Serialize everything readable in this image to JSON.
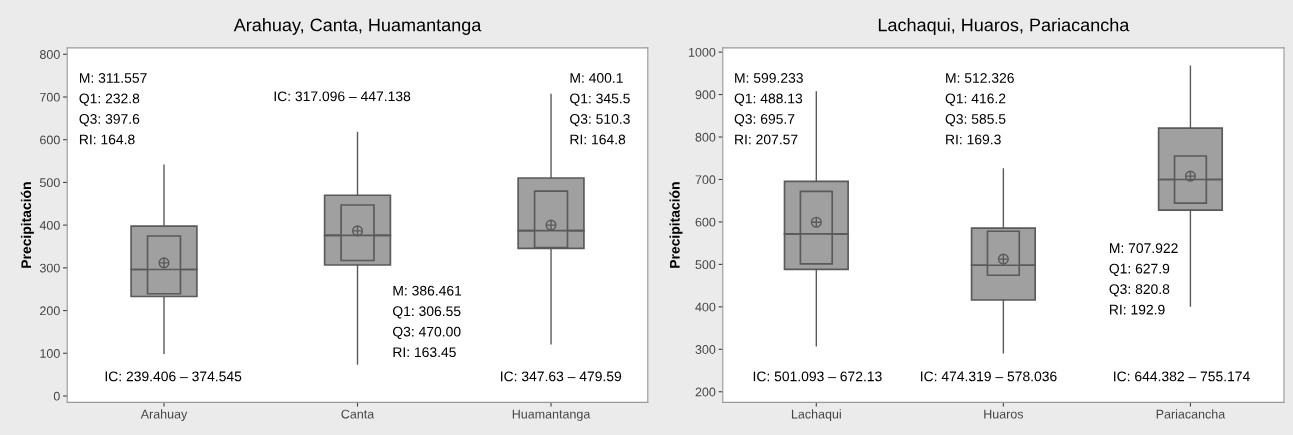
{
  "chart_data": [
    {
      "type": "box",
      "title": "Arahuay, Canta, Huamantanga",
      "ylabel": "Precipitación",
      "categories": [
        "Arahuay",
        "Canta",
        "Huamantanga"
      ],
      "color": "#a0a0a0",
      "boxes": [
        {
          "low": 100,
          "q1": 232.8,
          "median": 296,
          "q3": 397.6,
          "high": 540,
          "mean": 311.557
        },
        {
          "low": 75,
          "q1": 306.55,
          "median": 376,
          "q3": 470.0,
          "high": 617,
          "mean": 386.461
        },
        {
          "low": 122,
          "q1": 345.5,
          "median": 387,
          "q3": 510.3,
          "high": 706,
          "mean": 400.1
        }
      ],
      "series": [
        {
          "type": "bar",
          "color": "#a0a0a0",
          "base": [
            239.406,
            317.096,
            347.63
          ],
          "values": [
            135.1,
            130.0,
            132.0
          ]
        }
      ],
      "ylim": [
        -15,
        815
      ],
      "yticks": [
        0,
        100,
        200,
        300,
        400,
        500,
        600,
        700,
        800
      ],
      "grid": false,
      "annotations": [
        "M: 311.557\nQ1: 232.8\nQ3: 397.6\nRI: 164.8",
        "IC: 239.406 – 374.545",
        "IC: 317.096 – 447.138",
        "M: 386.461\nQ1: 306.55\nQ3: 470.00\nRI: 163.45",
        "M: 400.1\nQ1: 345.5\nQ3: 510.3\nRI: 164.8",
        "IC: 347.63 – 479.59"
      ]
    },
    {
      "type": "box",
      "title": "Lachaqui, Huaros, Pariacancha",
      "ylabel": "Precipitación",
      "categories": [
        "Lachaqui",
        "Huaros",
        "Pariacancha"
      ],
      "color": "#a0a0a0",
      "boxes": [
        {
          "low": 308,
          "q1": 488.13,
          "median": 572,
          "q3": 695.7,
          "high": 906,
          "mean": 599.233
        },
        {
          "low": 292,
          "q1": 416.2,
          "median": 498,
          "q3": 585.5,
          "high": 725,
          "mean": 512.326
        },
        {
          "low": 402,
          "q1": 627.9,
          "median": 700,
          "q3": 820.8,
          "high": 967,
          "mean": 707.922
        }
      ],
      "series": [
        {
          "type": "bar",
          "color": "#a0a0a0",
          "base": [
            501.093,
            474.319,
            644.382
          ],
          "values": [
            171.0,
            103.7,
            110.8
          ]
        }
      ],
      "ylim": [
        175,
        1010
      ],
      "yticks": [
        200,
        300,
        400,
        500,
        600,
        700,
        800,
        900,
        1000
      ],
      "grid": false,
      "annotations": [
        "M: 599.233\nQ1: 488.13\nQ3: 695.7\nRI: 207.57",
        "IC: 501.093 – 672.13",
        "M: 512.326\nQ1: 416.2\nQ3: 585.5\nRI: 169.3",
        "IC: 474.319 – 578.036",
        "M: 707.922\nQ1: 627.9\nQ3: 820.8\nRI: 192.9",
        "IC: 644.382 – 755.174"
      ]
    }
  ]
}
